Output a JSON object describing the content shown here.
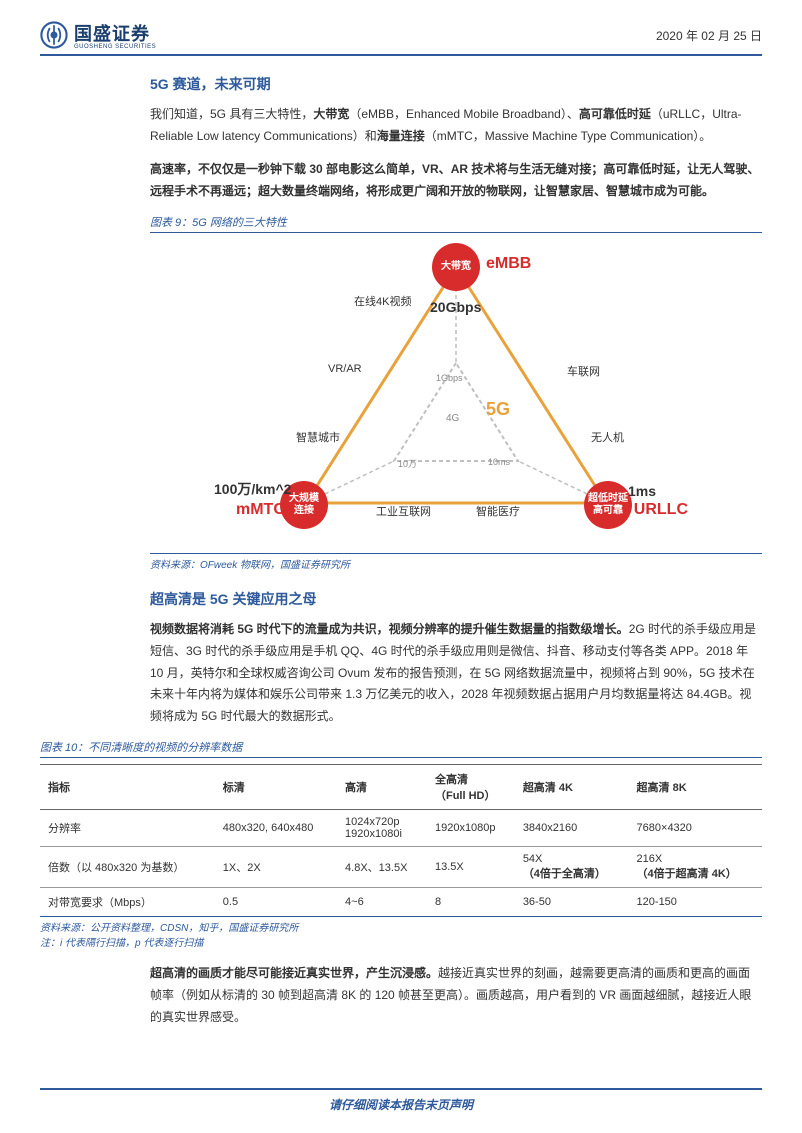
{
  "header": {
    "company_cn": "国盛证券",
    "company_en": "GUOSHENG SECURITIES",
    "date": "2020 年 02 月 25 日",
    "logo_color": "#2e5a9c"
  },
  "section1": {
    "title": "5G 赛道，未来可期",
    "p1_a": "我们知道，5G 具有三大特性，",
    "p1_b": "大带宽",
    "p1_c": "（eMBB，Enhanced Mobile Broadband）、",
    "p1_d": "高可靠低时延",
    "p1_e": "（uRLLC，Ultra-Reliable Low latency Communications）和",
    "p1_f": "海量连接",
    "p1_g": "（mMTC，Massive Machine Type Communication）。",
    "p2": "高速率，不仅仅是一秒钟下载 30 部电影这么简单，VR、AR 技术将与生活无缝对接；高可靠低时延，让无人驾驶、远程手术不再遥远；超大数量终端网络，将形成更广阔和开放的物联网，让智慧家居、智慧城市成为可能。"
  },
  "figure9": {
    "caption": "图表 9：5G 网络的三大特性",
    "source": "资料来源：OFweek 物联网，国盛证券研究所",
    "nodes": {
      "embb": {
        "label": "大带宽",
        "side": "eMBB",
        "metric": "20Gbps"
      },
      "mmtc": {
        "label": "大规模\n连接",
        "side": "mMTC",
        "metric": "100万/km^2"
      },
      "urllc": {
        "label": "超低时延\n高可靠",
        "side": "URLLC",
        "metric": "1ms"
      }
    },
    "center": "5G",
    "inner_center": "4G",
    "inner_labels": {
      "top": "1Gbps",
      "left": "10万",
      "right": "10ms"
    },
    "edge_labels": {
      "top_left": "在线4K视频",
      "left": "VR/AR",
      "left_low": "智慧城市",
      "bottom_left": "工业互联网",
      "bottom_right": "智能医疗",
      "right_low": "无人机",
      "right": "车联网"
    },
    "colors": {
      "node": "#d82c2c",
      "outer_edge": "#e9a23b",
      "inner_edge": "#bfbfbf",
      "center_text": "#e9a23b"
    }
  },
  "section2": {
    "title": "超高清是 5G 关键应用之母",
    "p1_a": "视频数据将消耗 5G 时代下的流量成为共识，视频分辨率的提升催生数据量的指数级增长。",
    "p1_b": "2G 时代的杀手级应用是短信、3G 时代的杀手级应用是手机 QQ、4G 时代的杀手级应用则是微信、抖音、移动支付等各类 APP。2018 年 10 月，英特尔和全球权威咨询公司 Ovum 发布的报告预测，在 5G 网络数据流量中，视频将占到 90%，5G 技术在未来十年内将为媒体和娱乐公司带来 1.3 万亿美元的收入，2028 年视频数据占据用户月均数据量将达 84.4GB。视频将成为 5G 时代最大的数据形式。"
  },
  "figure10": {
    "caption": "图表 10：不同清晰度的视频的分辨率数据",
    "columns": [
      "指标",
      "标清",
      "高清",
      "全高清\n（Full HD）",
      "超高清 4K",
      "超高清 8K"
    ],
    "rows": [
      [
        "分辨率",
        "480x320, 640x480",
        "1024x720p\n1920x1080i",
        "1920x1080p",
        "3840x2160",
        "7680×4320"
      ],
      [
        "倍数（以 480x320 为基数）",
        "1X、2X",
        "4.8X、13.5X",
        "13.5X",
        "54X\n（4倍于全高清）",
        "216X\n（4倍于超高清 4K）"
      ],
      [
        "对带宽要求（Mbps）",
        "0.5",
        "4~6",
        "8",
        "36-50",
        "120-150"
      ]
    ],
    "source": "资料来源：公开资料整理，CDSN，知乎，国盛证券研究所",
    "note": "注：i 代表隔行扫描，p 代表逐行扫描"
  },
  "section3": {
    "p1_a": "超高清的画质才能尽可能接近真实世界，产生沉浸感。",
    "p1_b": "越接近真实世界的刻画，越需要更高清的画质和更高的画面帧率（例如从标清的 30 帧到超高清 8K 的 120 帧甚至更高）。画质越高，用户看到的 VR 画面越细腻，越接近人眼的真实世界感受。"
  },
  "footer": "请仔细阅读本报告末页声明"
}
